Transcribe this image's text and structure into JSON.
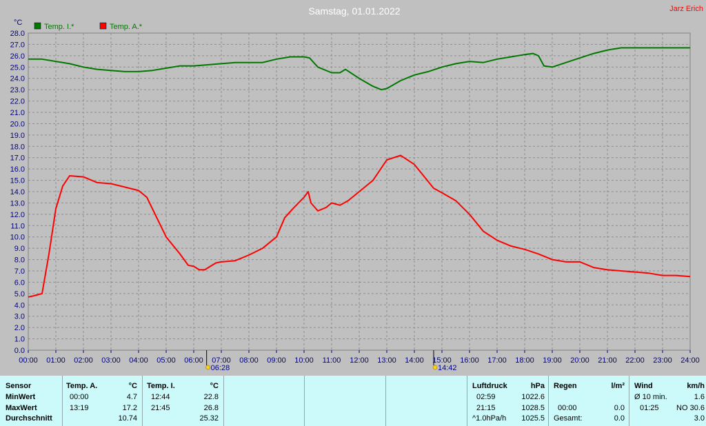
{
  "title": "Samstag, 01.01.2022",
  "author": "Jarz Erich",
  "unit_label": "°C",
  "colors": {
    "inside": "#007800",
    "outside": "#ff0000",
    "background": "#c0c0c0",
    "stats_bg": "#ccfafa",
    "author": "#ff0000"
  },
  "markers": {
    "sunrise": {
      "label": "06:28",
      "hour": 6.467
    },
    "sunset": {
      "label": "14:42",
      "hour": 14.7
    }
  },
  "chart_data": {
    "type": "line",
    "title": "Samstag, 01.01.2022",
    "ylabel": "°C",
    "xlim": [
      0,
      24
    ],
    "ylim": [
      0,
      28
    ],
    "grid": true,
    "legend_position": "top-left",
    "x_ticks": [
      "00:00",
      "01:00",
      "02:00",
      "03:00",
      "04:00",
      "05:00",
      "06:00",
      "07:00",
      "08:00",
      "09:00",
      "10:00",
      "11:00",
      "12:00",
      "13:00",
      "14:00",
      "15:00",
      "16:00",
      "17:00",
      "18:00",
      "19:00",
      "20:00",
      "21:00",
      "22:00",
      "23:00",
      "24:00"
    ],
    "y_ticks": [
      "0.0",
      "1.0",
      "2.0",
      "3.0",
      "4.0",
      "5.0",
      "6.0",
      "7.0",
      "8.0",
      "9.0",
      "10.0",
      "11.0",
      "12.0",
      "13.0",
      "14.0",
      "15.0",
      "16.0",
      "17.0",
      "18.0",
      "19.0",
      "20.0",
      "21.0",
      "22.0",
      "23.0",
      "24.0",
      "25.0",
      "26.0",
      "27.0",
      "28.0"
    ],
    "series": [
      {
        "name": "Temp. I.*",
        "color": "#007800",
        "x": [
          0,
          0.5,
          1,
          1.5,
          2,
          2.5,
          3,
          3.5,
          4,
          4.5,
          5,
          5.5,
          6,
          6.5,
          7,
          7.5,
          8,
          8.5,
          9,
          9.5,
          10,
          10.2,
          10.5,
          11,
          11.3,
          11.5,
          12,
          12.5,
          12.8,
          13,
          13.5,
          14,
          14.5,
          15,
          15.5,
          16,
          16.5,
          17,
          17.5,
          18,
          18.3,
          18.5,
          18.7,
          19,
          19.5,
          20,
          20.5,
          21,
          21.5,
          22,
          22.5,
          23,
          23.5,
          24
        ],
        "y": [
          25.7,
          25.7,
          25.5,
          25.3,
          25.0,
          24.8,
          24.7,
          24.6,
          24.6,
          24.7,
          24.9,
          25.1,
          25.1,
          25.2,
          25.3,
          25.4,
          25.4,
          25.4,
          25.7,
          25.9,
          25.9,
          25.8,
          25.0,
          24.5,
          24.5,
          24.8,
          24.0,
          23.3,
          23.0,
          23.1,
          23.8,
          24.3,
          24.6,
          25.0,
          25.3,
          25.5,
          25.4,
          25.7,
          25.9,
          26.1,
          26.2,
          26.0,
          25.1,
          25.0,
          25.4,
          25.8,
          26.2,
          26.5,
          26.7,
          26.7,
          26.7,
          26.7,
          26.7,
          26.7
        ]
      },
      {
        "name": "Temp. A.*",
        "color": "#ff0000",
        "x": [
          0,
          0.2,
          0.5,
          0.75,
          1,
          1.25,
          1.5,
          2,
          2.5,
          3,
          3.5,
          4,
          4.3,
          4.6,
          4.8,
          5,
          5.5,
          5.8,
          6,
          6.2,
          6.4,
          6.6,
          6.8,
          7,
          7.5,
          8,
          8.5,
          9,
          9.3,
          9.6,
          10,
          10.15,
          10.25,
          10.5,
          10.8,
          11,
          11.3,
          11.6,
          12,
          12.5,
          13,
          13.5,
          14,
          14.3,
          14.7,
          15,
          15.5,
          16,
          16.5,
          17,
          17.5,
          18,
          18.5,
          19,
          19.5,
          20,
          20.5,
          21,
          21.5,
          22,
          22.5,
          23,
          23.5,
          24
        ],
        "y": [
          4.7,
          4.8,
          5.0,
          8.5,
          12.5,
          14.5,
          15.4,
          15.3,
          14.8,
          14.7,
          14.4,
          14.1,
          13.5,
          12.0,
          11.0,
          10.0,
          8.5,
          7.5,
          7.4,
          7.1,
          7.1,
          7.4,
          7.7,
          7.8,
          7.9,
          8.4,
          9.0,
          10.0,
          11.7,
          12.5,
          13.5,
          14.0,
          13.0,
          12.3,
          12.6,
          13.0,
          12.8,
          13.2,
          14.0,
          15.0,
          16.8,
          17.2,
          16.4,
          15.5,
          14.3,
          13.9,
          13.2,
          12.0,
          10.5,
          9.7,
          9.2,
          8.9,
          8.5,
          8.0,
          7.8,
          7.8,
          7.3,
          7.1,
          7.0,
          6.9,
          6.8,
          6.6,
          6.6,
          6.5
        ]
      }
    ]
  },
  "stats": {
    "sensor": {
      "header": "Sensor",
      "min": "MinWert",
      "max": "MaxWert",
      "avg": "Durchschnitt"
    },
    "temp_a": {
      "header": "Temp. A.",
      "unit": "°C",
      "min_time": "00:00",
      "min_val": "4.7",
      "max_time": "13:19",
      "max_val": "17.2",
      "avg": "10.74"
    },
    "temp_i": {
      "header": "Temp. I.",
      "unit": "°C",
      "min_time": "12:44",
      "min_val": "22.8",
      "max_time": "21:45",
      "max_val": "26.8",
      "avg": "25.32"
    },
    "pressure": {
      "header": "Luftdruck",
      "unit": "hPa",
      "min_time": "02:59",
      "min_val": "1022.6",
      "max_time": "21:15",
      "max_val": "1028.5",
      "trend_label": "^1.0hPa/h",
      "trend_val": "1025.5"
    },
    "rain": {
      "header": "Regen",
      "unit": "l/m²",
      "time": "00:00",
      "val": "0.0",
      "total_label": "Gesamt:",
      "total_val": "0.0"
    },
    "wind": {
      "header": "Wind",
      "unit": "km/h",
      "avg_label": "Ø 10 min.",
      "avg_val": "1.6",
      "time": "01:25",
      "dir_val": "NO 30.6",
      "last_val": "3.0"
    }
  }
}
